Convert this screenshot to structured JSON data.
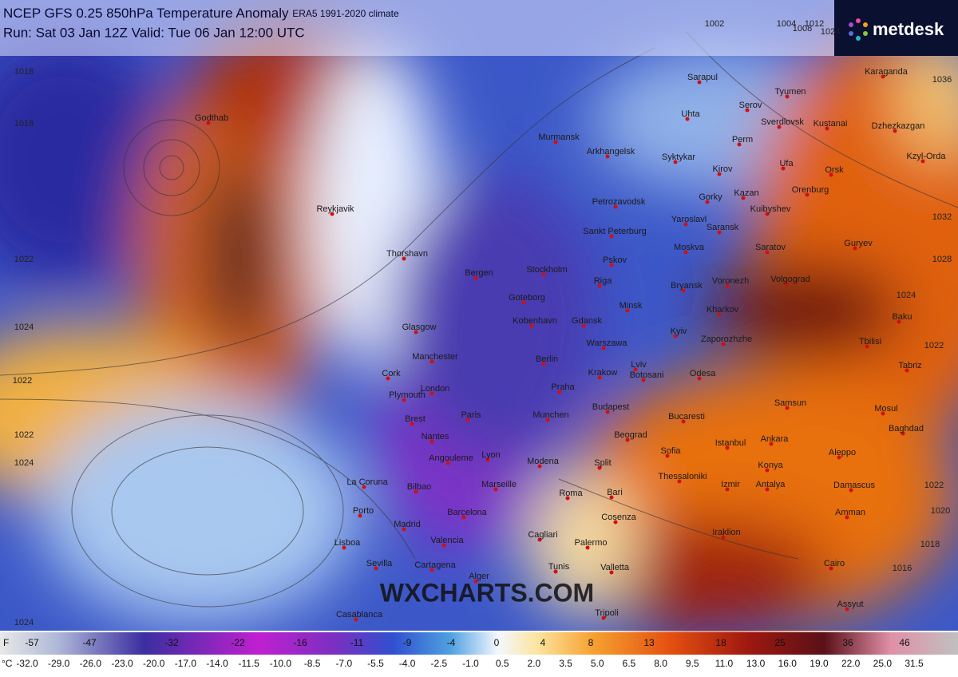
{
  "header": {
    "title": "NCEP GFS 0.25 850hPa Temperature Anomaly",
    "subtitle": "ERA5 1991-2020 climate",
    "run": "Run: Sat 03 Jan 12Z Valid: Tue 06 Jan 12:00 UTC",
    "logo": "metdesk"
  },
  "watermark": "WXCHARTS.COM",
  "isobars": [
    "1024",
    "1018",
    "1018",
    "1022",
    "1024",
    "1022",
    "1022",
    "1024",
    "1024",
    "1012",
    "1008",
    "1004",
    "1002",
    "1036",
    "1032",
    "1028",
    "1024",
    "1022",
    "1022",
    "1020",
    "1018",
    "1016"
  ],
  "cities": [
    "Godthab",
    "Reykjavik",
    "Thorshavn",
    "Murmansk",
    "Arkhangelsk",
    "Syktykar",
    "Uhta",
    "Sarapul",
    "Serov",
    "Tyumen",
    "Sverdlovsk",
    "Kustanai",
    "Karaganda",
    "Dzhezkazgan",
    "Kzyl-Orda",
    "Perm",
    "Kirov",
    "Ufa",
    "Orsk",
    "Orenburg",
    "Gorky",
    "Kazan",
    "Kuibyshev",
    "Yaroslavl",
    "Saransk",
    "Saratov",
    "Petrozavodsk",
    "Sankt Peterburg",
    "Moskva",
    "Pskov",
    "Riga",
    "Bergen",
    "Stockholm",
    "Goteborg",
    "Bryansk",
    "Voronezh",
    "Volgograd",
    "Guryev",
    "Minsk",
    "Kharkov",
    "Glasgow",
    "Kobenhavn",
    "Gdansk",
    "Baku",
    "Kyiv",
    "Warszawa",
    "Zaporozhzhe",
    "Manchester",
    "Berlin",
    "Tbilisi",
    "Cork",
    "London",
    "Plymouth",
    "Krakow",
    "Lviv",
    "Odesa",
    "Praha",
    "Tabriz",
    "Brest",
    "Paris",
    "Munchen",
    "Budapest",
    "Botosani",
    "Samsun",
    "Mosul",
    "Bucaresti",
    "Nantes",
    "Ankara",
    "Baghdad",
    "Beograd",
    "Istanbul",
    "Angouleme",
    "Lyon",
    "Modena",
    "Split",
    "Sofia",
    "Aleppo",
    "Konya",
    "Bilbao",
    "Marseille",
    "La Coruna",
    "Roma",
    "Bari",
    "Thessaloniki",
    "Izmir",
    "Antalya",
    "Damascus",
    "Porto",
    "Barcelona",
    "Madrid",
    "Cosenza",
    "Amman",
    "Cagliari",
    "Palermo",
    "Valencia",
    "Lisboa",
    "Iraklion",
    "Sevilla",
    "Cartagena",
    "Alger",
    "Tunis",
    "Valletta",
    "Cairo",
    "Tripoli",
    "Casablanca",
    "Assyut"
  ],
  "scale": {
    "f_unit": "F",
    "f_labels": [
      "-57",
      "-47",
      "-32",
      "-22",
      "-16",
      "-11",
      "-9",
      "-4",
      "0",
      "4",
      "8",
      "13",
      "18",
      "25",
      "36",
      "46"
    ],
    "c_unit": "°C",
    "c_labels": [
      "-32.0",
      "-29.0",
      "-26.0",
      "-23.0",
      "-20.0",
      "-17.0",
      "-14.0",
      "-11.5",
      "-10.0",
      "-8.5",
      "-7.0",
      "-5.5",
      "-4.0",
      "-2.5",
      "-1.0",
      "0.5",
      "2.0",
      "3.5",
      "5.0",
      "6.5",
      "8.0",
      "9.5",
      "11.0",
      "13.0",
      "16.0",
      "19.0",
      "22.0",
      "25.0",
      "31.5"
    ]
  }
}
